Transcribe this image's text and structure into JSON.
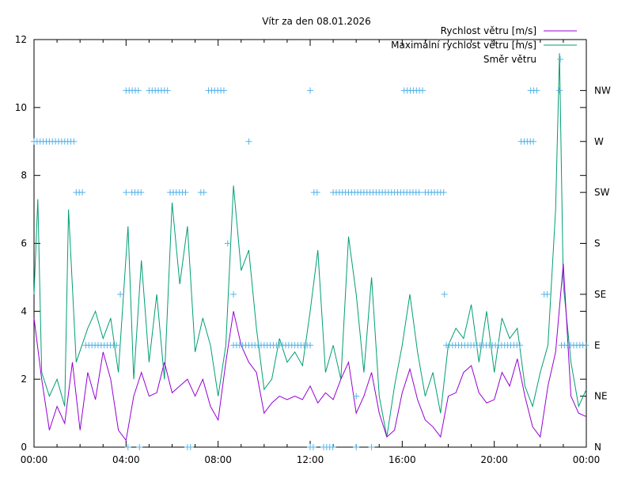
{
  "chart_data": {
    "type": "line",
    "title": "Vítr za den 08.01.2026",
    "xlabel": "",
    "ylabel": "",
    "xlim": [
      "00:00",
      "24:00"
    ],
    "ylim": [
      0,
      12
    ],
    "x_ticks": [
      "00:00",
      "04:00",
      "08:00",
      "12:00",
      "16:00",
      "20:00",
      "00:00"
    ],
    "y_ticks": [
      0,
      2,
      4,
      6,
      8,
      10,
      12
    ],
    "y2_ticks": [
      "N",
      "NE",
      "E",
      "SE",
      "S",
      "SW",
      "W",
      "NW"
    ],
    "grid": false,
    "legend_position": "top-right",
    "series": [
      {
        "name": "Rychlost větru [m/s]",
        "color": "#9400d3",
        "style": "line",
        "axis": "y",
        "points": [
          [
            "00:00",
            3.8
          ],
          [
            "00:20",
            2.0
          ],
          [
            "00:40",
            0.5
          ],
          [
            "01:00",
            1.2
          ],
          [
            "01:20",
            0.7
          ],
          [
            "01:40",
            2.5
          ],
          [
            "02:00",
            0.5
          ],
          [
            "02:20",
            2.2
          ],
          [
            "02:40",
            1.4
          ],
          [
            "03:00",
            2.8
          ],
          [
            "03:20",
            2.0
          ],
          [
            "03:40",
            0.5
          ],
          [
            "04:00",
            0.2
          ],
          [
            "04:20",
            1.5
          ],
          [
            "04:40",
            2.2
          ],
          [
            "05:00",
            1.5
          ],
          [
            "05:20",
            1.6
          ],
          [
            "05:40",
            2.5
          ],
          [
            "06:00",
            1.6
          ],
          [
            "06:20",
            1.8
          ],
          [
            "06:40",
            2.0
          ],
          [
            "07:00",
            1.5
          ],
          [
            "07:20",
            2.0
          ],
          [
            "07:40",
            1.2
          ],
          [
            "08:00",
            0.8
          ],
          [
            "08:20",
            2.5
          ],
          [
            "08:40",
            4.0
          ],
          [
            "09:00",
            3.0
          ],
          [
            "09:20",
            2.5
          ],
          [
            "09:40",
            2.2
          ],
          [
            "10:00",
            1.0
          ],
          [
            "10:20",
            1.3
          ],
          [
            "10:40",
            1.5
          ],
          [
            "11:00",
            1.4
          ],
          [
            "11:20",
            1.5
          ],
          [
            "11:40",
            1.4
          ],
          [
            "12:00",
            1.8
          ],
          [
            "12:20",
            1.3
          ],
          [
            "12:40",
            1.6
          ],
          [
            "13:00",
            1.4
          ],
          [
            "13:20",
            2.0
          ],
          [
            "13:40",
            2.5
          ],
          [
            "14:00",
            1.0
          ],
          [
            "14:20",
            1.5
          ],
          [
            "14:40",
            2.2
          ],
          [
            "15:00",
            1.0
          ],
          [
            "15:20",
            0.3
          ],
          [
            "15:40",
            0.5
          ],
          [
            "16:00",
            1.6
          ],
          [
            "16:20",
            2.3
          ],
          [
            "16:40",
            1.4
          ],
          [
            "17:00",
            0.8
          ],
          [
            "17:20",
            0.6
          ],
          [
            "17:40",
            0.3
          ],
          [
            "18:00",
            1.5
          ],
          [
            "18:20",
            1.6
          ],
          [
            "18:40",
            2.2
          ],
          [
            "19:00",
            2.4
          ],
          [
            "19:20",
            1.6
          ],
          [
            "19:40",
            1.3
          ],
          [
            "20:00",
            1.4
          ],
          [
            "20:20",
            2.2
          ],
          [
            "20:40",
            1.8
          ],
          [
            "21:00",
            2.6
          ],
          [
            "21:20",
            1.5
          ],
          [
            "21:40",
            0.6
          ],
          [
            "22:00",
            0.3
          ],
          [
            "22:20",
            1.8
          ],
          [
            "22:40",
            2.8
          ],
          [
            "23:00",
            5.4
          ],
          [
            "23:20",
            1.5
          ],
          [
            "23:40",
            1.0
          ],
          [
            "24:00",
            0.9
          ]
        ]
      },
      {
        "name": "Maximální rychlost větru [m/s]",
        "color": "#009e73",
        "style": "line",
        "axis": "y",
        "points": [
          [
            "00:00",
            4.5
          ],
          [
            "00:10",
            7.3
          ],
          [
            "00:20",
            2.2
          ],
          [
            "00:40",
            1.5
          ],
          [
            "01:00",
            2.0
          ],
          [
            "01:20",
            1.2
          ],
          [
            "01:30",
            7.0
          ],
          [
            "01:50",
            2.5
          ],
          [
            "02:20",
            3.5
          ],
          [
            "02:40",
            4.0
          ],
          [
            "03:00",
            3.2
          ],
          [
            "03:20",
            3.8
          ],
          [
            "03:40",
            2.2
          ],
          [
            "04:05",
            6.5
          ],
          [
            "04:20",
            2.0
          ],
          [
            "04:40",
            5.5
          ],
          [
            "05:00",
            2.5
          ],
          [
            "05:20",
            4.5
          ],
          [
            "05:40",
            2.0
          ],
          [
            "06:00",
            7.2
          ],
          [
            "06:20",
            4.8
          ],
          [
            "06:40",
            6.5
          ],
          [
            "07:00",
            2.8
          ],
          [
            "07:20",
            3.8
          ],
          [
            "07:40",
            3.0
          ],
          [
            "08:00",
            1.5
          ],
          [
            "08:20",
            3.0
          ],
          [
            "08:40",
            7.7
          ],
          [
            "09:00",
            5.2
          ],
          [
            "09:20",
            5.8
          ],
          [
            "09:40",
            3.5
          ],
          [
            "10:00",
            1.7
          ],
          [
            "10:20",
            2.0
          ],
          [
            "10:40",
            3.2
          ],
          [
            "11:00",
            2.5
          ],
          [
            "11:20",
            2.8
          ],
          [
            "11:40",
            2.4
          ],
          [
            "12:00",
            4.0
          ],
          [
            "12:20",
            5.8
          ],
          [
            "12:40",
            2.2
          ],
          [
            "13:00",
            3.0
          ],
          [
            "13:20",
            2.0
          ],
          [
            "13:40",
            6.2
          ],
          [
            "14:00",
            4.5
          ],
          [
            "14:20",
            2.2
          ],
          [
            "14:40",
            5.0
          ],
          [
            "15:00",
            1.5
          ],
          [
            "15:20",
            0.3
          ],
          [
            "15:40",
            1.8
          ],
          [
            "16:00",
            3.0
          ],
          [
            "16:20",
            4.5
          ],
          [
            "16:40",
            2.8
          ],
          [
            "17:00",
            1.5
          ],
          [
            "17:20",
            2.2
          ],
          [
            "17:40",
            1.0
          ],
          [
            "18:00",
            3.0
          ],
          [
            "18:20",
            3.5
          ],
          [
            "18:40",
            3.2
          ],
          [
            "19:00",
            4.2
          ],
          [
            "19:20",
            2.5
          ],
          [
            "19:40",
            4.0
          ],
          [
            "20:00",
            2.2
          ],
          [
            "20:20",
            3.8
          ],
          [
            "20:40",
            3.2
          ],
          [
            "21:00",
            3.5
          ],
          [
            "21:20",
            1.8
          ],
          [
            "21:40",
            1.2
          ],
          [
            "22:00",
            2.2
          ],
          [
            "22:20",
            3.0
          ],
          [
            "22:40",
            7.0
          ],
          [
            "22:50",
            11.6
          ],
          [
            "23:00",
            4.8
          ],
          [
            "23:20",
            2.5
          ],
          [
            "23:40",
            1.2
          ],
          [
            "24:00",
            1.7
          ]
        ]
      },
      {
        "name": "Směr větru",
        "color": "#56b4e9",
        "style": "points",
        "axis": "y2",
        "runs": [
          {
            "from": "00:00",
            "to": "01:45",
            "dir": "W"
          },
          {
            "from": "01:50",
            "to": "02:10",
            "dir": "SW"
          },
          {
            "from": "02:15",
            "to": "03:35",
            "dir": "E"
          },
          {
            "from": "03:45",
            "to": "03:50",
            "dir": "SE"
          },
          {
            "from": "04:00",
            "to": "04:00",
            "dir": "SW"
          },
          {
            "from": "04:00",
            "to": "04:35",
            "dir": "NW"
          },
          {
            "from": "04:15",
            "to": "04:45",
            "dir": "SW"
          },
          {
            "from": "04:05",
            "to": "04:05",
            "dir": "N"
          },
          {
            "from": "04:35",
            "to": "04:35",
            "dir": "N"
          },
          {
            "from": "05:00",
            "to": "05:55",
            "dir": "NW"
          },
          {
            "from": "05:55",
            "to": "06:40",
            "dir": "SW"
          },
          {
            "from": "06:40",
            "to": "06:50",
            "dir": "N"
          },
          {
            "from": "07:15",
            "to": "07:30",
            "dir": "SW"
          },
          {
            "from": "07:35",
            "to": "08:20",
            "dir": "NW"
          },
          {
            "from": "08:25",
            "to": "08:30",
            "dir": "S"
          },
          {
            "from": "08:40",
            "to": "08:40",
            "dir": "SE"
          },
          {
            "from": "08:40",
            "to": "12:00",
            "dir": "E"
          },
          {
            "from": "09:20",
            "to": "09:20",
            "dir": "W"
          },
          {
            "from": "12:00",
            "to": "12:00",
            "dir": "NW"
          },
          {
            "from": "12:00",
            "to": "12:10",
            "dir": "N"
          },
          {
            "from": "12:10",
            "to": "12:20",
            "dir": "SW"
          },
          {
            "from": "12:35",
            "to": "13:00",
            "dir": "N"
          },
          {
            "from": "13:00",
            "to": "16:50",
            "dir": "SW"
          },
          {
            "from": "14:00",
            "to": "14:00",
            "dir": "NE"
          },
          {
            "from": "14:00",
            "to": "14:00",
            "dir": "N"
          },
          {
            "from": "14:40",
            "to": "14:40",
            "dir": "N"
          },
          {
            "from": "16:05",
            "to": "16:55",
            "dir": "NW"
          },
          {
            "from": "17:00",
            "to": "17:50",
            "dir": "SW"
          },
          {
            "from": "17:50",
            "to": "17:50",
            "dir": "SE"
          },
          {
            "from": "17:55",
            "to": "21:10",
            "dir": "E"
          },
          {
            "from": "21:10",
            "to": "21:45",
            "dir": "W"
          },
          {
            "from": "21:35",
            "to": "21:55",
            "dir": "NW"
          },
          {
            "from": "22:10",
            "to": "22:20",
            "dir": "SE"
          },
          {
            "from": "22:50",
            "to": "22:50",
            "dir": "NW"
          },
          {
            "from": "22:55",
            "to": "24:00",
            "dir": "E"
          }
        ]
      }
    ]
  }
}
